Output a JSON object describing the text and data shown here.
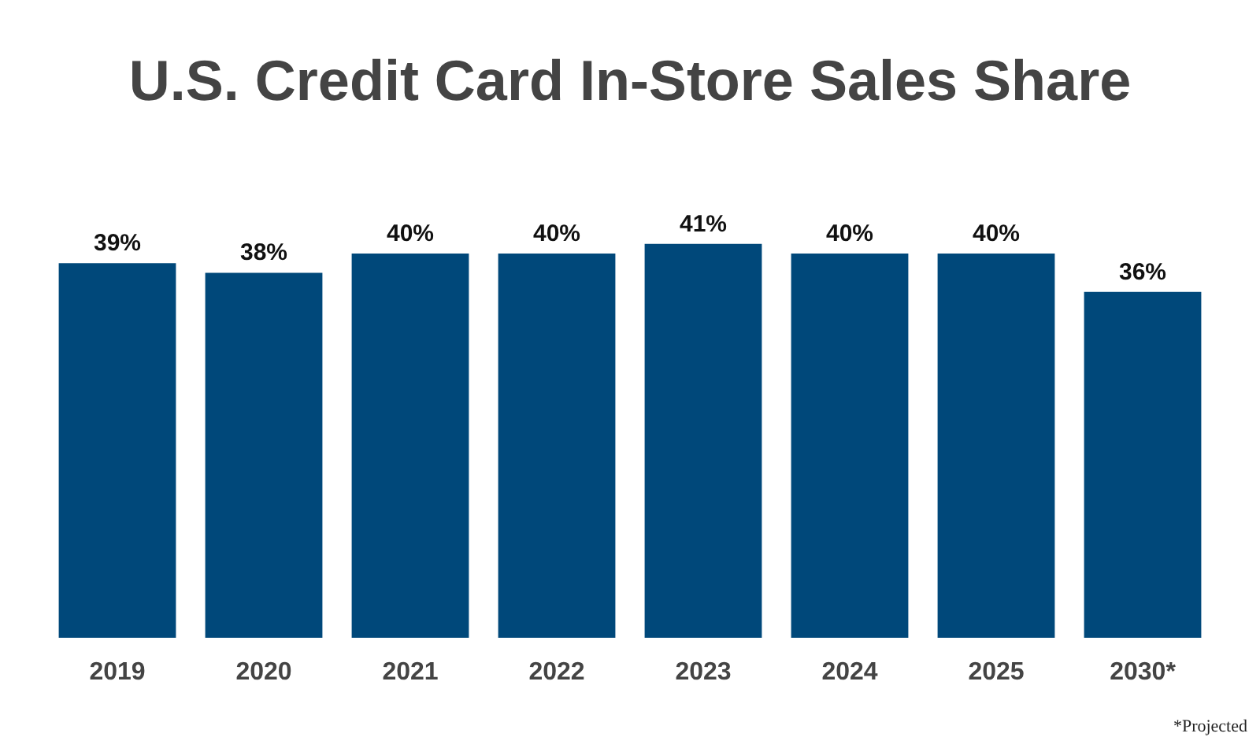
{
  "chart_data": {
    "type": "bar",
    "title": "U.S. Credit Card In-Store Sales Share",
    "categories": [
      "2019",
      "2020",
      "2021",
      "2022",
      "2023",
      "2024",
      "2025",
      "2030*"
    ],
    "values": [
      39,
      38,
      40,
      40,
      41,
      40,
      40,
      36
    ],
    "color": "#00487a",
    "value_labels": [
      "39%",
      "38%",
      "40%",
      "40%",
      "41%",
      "40%",
      "40%",
      "36%"
    ],
    "annotations": [
      "*Projected"
    ]
  }
}
